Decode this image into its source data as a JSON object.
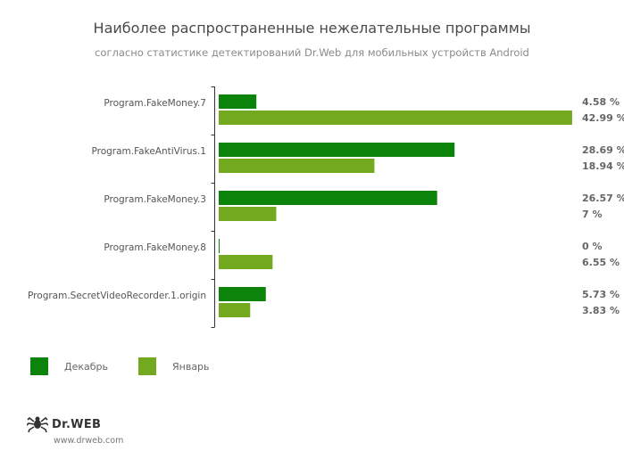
{
  "title": "Наиболее распространенные нежелательные программы",
  "subtitle": "согласно статистике детектирований Dr.Web для мобильных устройств Android",
  "colors": {
    "december": "#0c840c",
    "january": "#72a91f"
  },
  "chart_data": {
    "type": "bar",
    "orientation": "horizontal",
    "categories": [
      "Program.FakeMoney.7",
      "Program.FakeAntiVirus.1",
      "Program.FakeMoney.3",
      "Program.FakeMoney.8",
      "Program.SecretVideoRecorder.1.origin"
    ],
    "series": [
      {
        "name": "Декабрь",
        "values": [
          4.58,
          28.69,
          26.57,
          0,
          5.73
        ],
        "labels": [
          "4.58 %",
          "28.69 %",
          "26.57 %",
          "0 %",
          "5.73 %"
        ]
      },
      {
        "name": "Январь",
        "values": [
          42.99,
          18.94,
          7,
          6.55,
          3.83
        ],
        "labels": [
          "42.99 %",
          "18.94 %",
          "7 %",
          "6.55 %",
          "3.83 %"
        ]
      }
    ],
    "xlim": [
      0,
      43
    ],
    "grid": false,
    "legend_position": "bottom-left"
  },
  "legend": {
    "december": "Декабрь",
    "january": "Январь"
  },
  "logo": {
    "brand": "Dr.WEB",
    "url": "www.drweb.com"
  }
}
